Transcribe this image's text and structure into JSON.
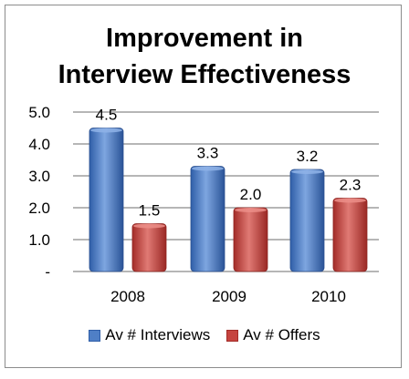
{
  "chart_data": {
    "type": "bar",
    "title_lines": [
      "Improvement in",
      "Interview Effectiveness"
    ],
    "categories": [
      "2008",
      "2009",
      "2010"
    ],
    "series": [
      {
        "name": "Av # Interviews",
        "values": [
          4.5,
          3.3,
          3.2
        ],
        "labels": [
          "4.5",
          "3.3",
          "3.2"
        ],
        "color": "#4f7fc6"
      },
      {
        "name": "Av # Offers",
        "values": [
          1.5,
          2.0,
          2.3
        ],
        "labels": [
          "1.5",
          "2.0",
          "2.3"
        ],
        "color": "#c6443f"
      }
    ],
    "y_ticks": [
      {
        "value": 0,
        "label": "-"
      },
      {
        "value": 1,
        "label": "1.0"
      },
      {
        "value": 2,
        "label": "2.0"
      },
      {
        "value": 3,
        "label": "3.0"
      },
      {
        "value": 4,
        "label": "4.0"
      },
      {
        "value": 5,
        "label": "5.0"
      }
    ],
    "ylim": [
      0,
      5
    ],
    "grid": true,
    "legend_position": "bottom"
  }
}
